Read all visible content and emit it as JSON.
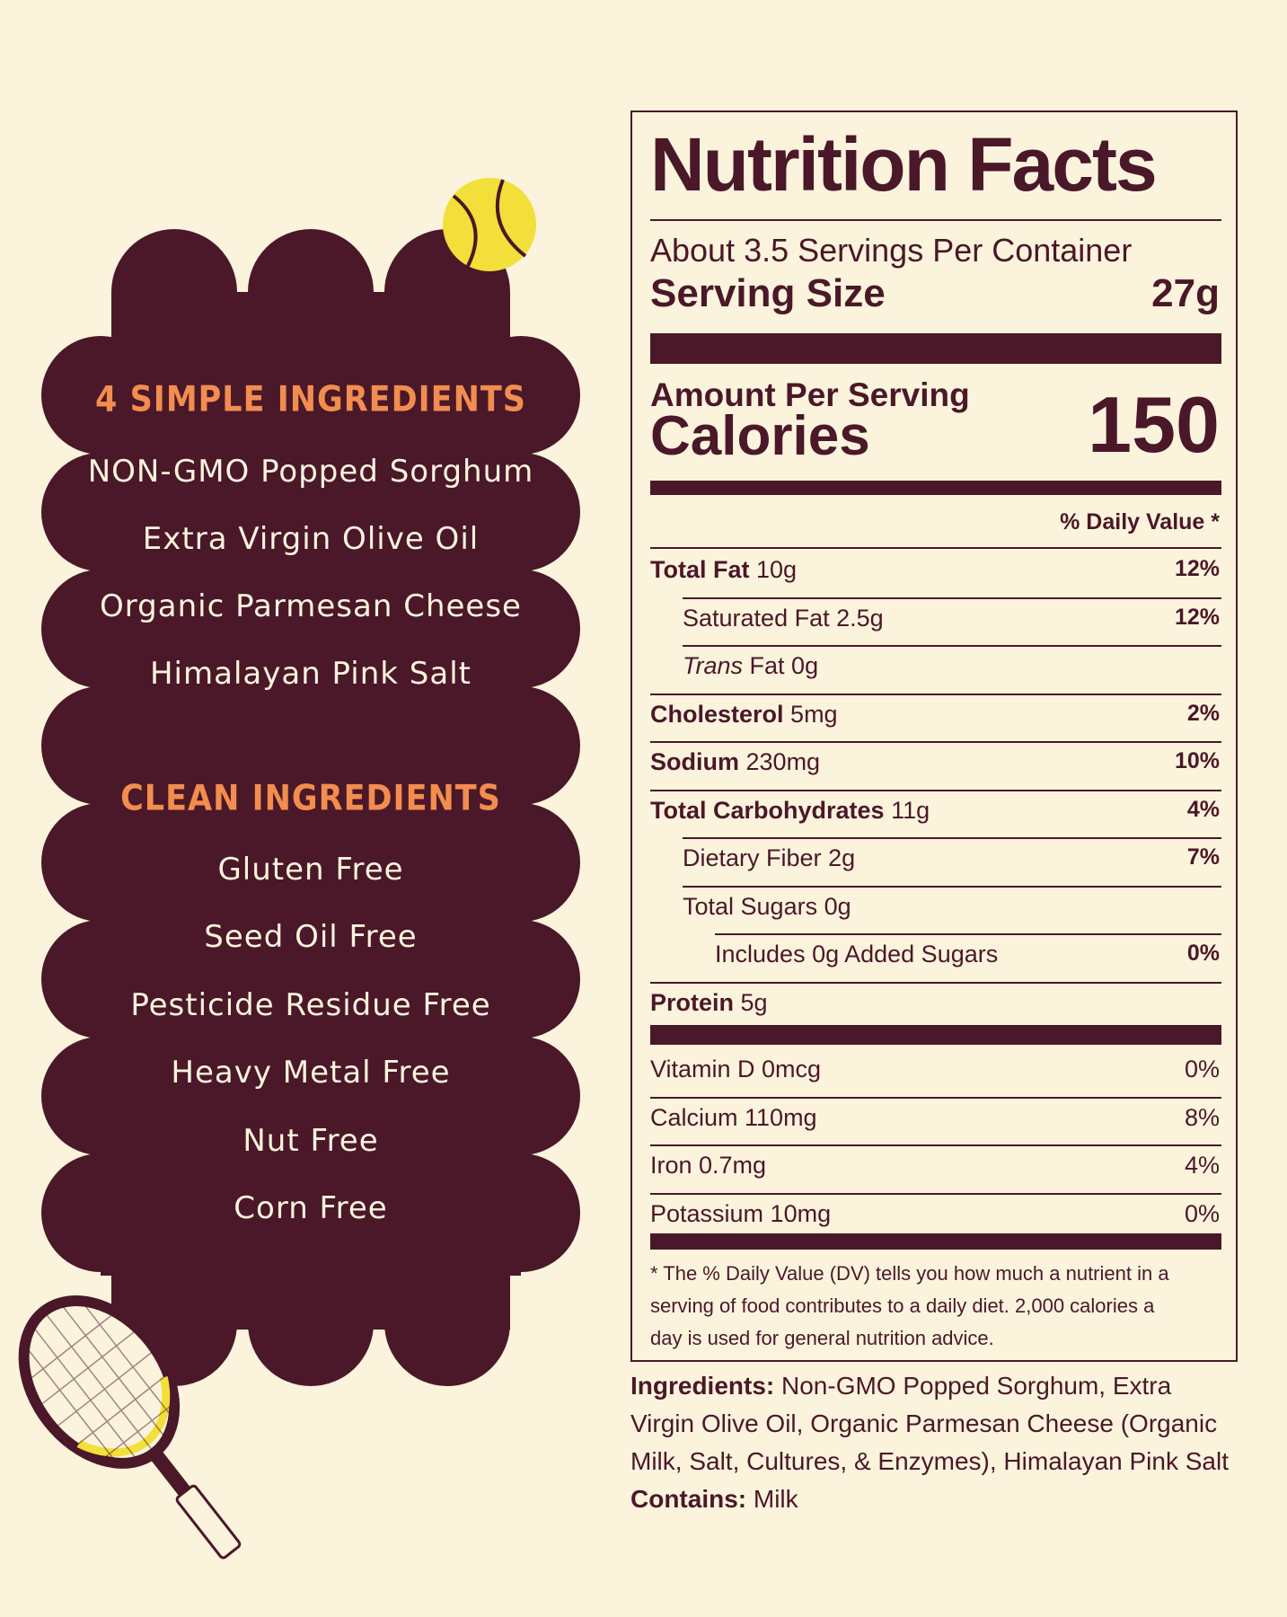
{
  "ingredients_panel": {
    "simple_heading": "4 SIMPLE INGREDIENTS",
    "simple_items": [
      "NON-GMO Popped Sorghum",
      "Extra Virgin Olive Oil",
      "Organic Parmesan Cheese",
      "Himalayan Pink Salt"
    ],
    "clean_heading": "CLEAN INGREDIENTS",
    "clean_items": [
      "Gluten  Free",
      "Seed  Oil  Free",
      "Pesticide Residue  Free",
      "Heavy Metal  Free",
      "Nut  Free",
      "Corn  Free"
    ]
  },
  "nutrition": {
    "title": "Nutrition Facts",
    "servings_per_container": "About 3.5 Servings Per Container",
    "serving_size_label": "Serving Size",
    "serving_size_value": "27g",
    "amount_per_serving": "Amount Per Serving",
    "calories_label": "Calories",
    "calories_value": "150",
    "dv_header": "% Daily Value *",
    "rows": [
      {
        "label": "Total Fat",
        "amount": "10g",
        "dv": "12%"
      },
      {
        "label": "Saturated Fat",
        "amount": "2.5g",
        "dv": "12%"
      },
      {
        "label": "Trans",
        "label_suffix": " Fat",
        "amount": "0g",
        "dv": ""
      },
      {
        "label": "Cholesterol",
        "amount": "5mg",
        "dv": "2%"
      },
      {
        "label": "Sodium",
        "amount": "230mg",
        "dv": "10%"
      },
      {
        "label": "Total Carbohydrates",
        "amount": "11g",
        "dv": "4%"
      },
      {
        "label": "Dietary Fiber",
        "amount": "2g",
        "dv": "7%"
      },
      {
        "label": "Total Sugars",
        "amount": "0g",
        "dv": ""
      },
      {
        "label": "Includes 0g Added Sugars",
        "amount": "",
        "dv": "0%"
      },
      {
        "label": "Protein",
        "amount": "5g",
        "dv": ""
      }
    ],
    "vitamins": [
      {
        "label": "Vitamin D 0mcg",
        "dv": "0%"
      },
      {
        "label": "Calcium 110mg",
        "dv": "8%"
      },
      {
        "label": "Iron 0.7mg",
        "dv": "4%"
      },
      {
        "label": "Potassium 10mg",
        "dv": "0%"
      }
    ],
    "footnote": [
      "* The % Daily Value (DV) tells you how much a nutrient in a",
      "serving of food contributes to a daily diet. 2,000 calories a",
      "day is used for general nutrition advice."
    ]
  },
  "ingredients_statement": {
    "ingredients_label": "Ingredients:",
    "ingredients_line1": " Non-GMO Popped Sorghum, Extra",
    "ingredients_line2": "Virgin Olive Oil, Organic Parmesan Cheese (Organic",
    "ingredients_line3": "Milk, Salt, Cultures, & Enzymes), Himalayan Pink Salt",
    "contains_label": "Contains:",
    "contains_value": " Milk"
  },
  "colors": {
    "background": "#fcf3dd",
    "maroon": "#4a1828",
    "orange": "#f28d4f",
    "ball_yellow": "#f2df3a"
  },
  "icons": [
    "tennis-ball-icon",
    "tennis-racket-icon"
  ]
}
